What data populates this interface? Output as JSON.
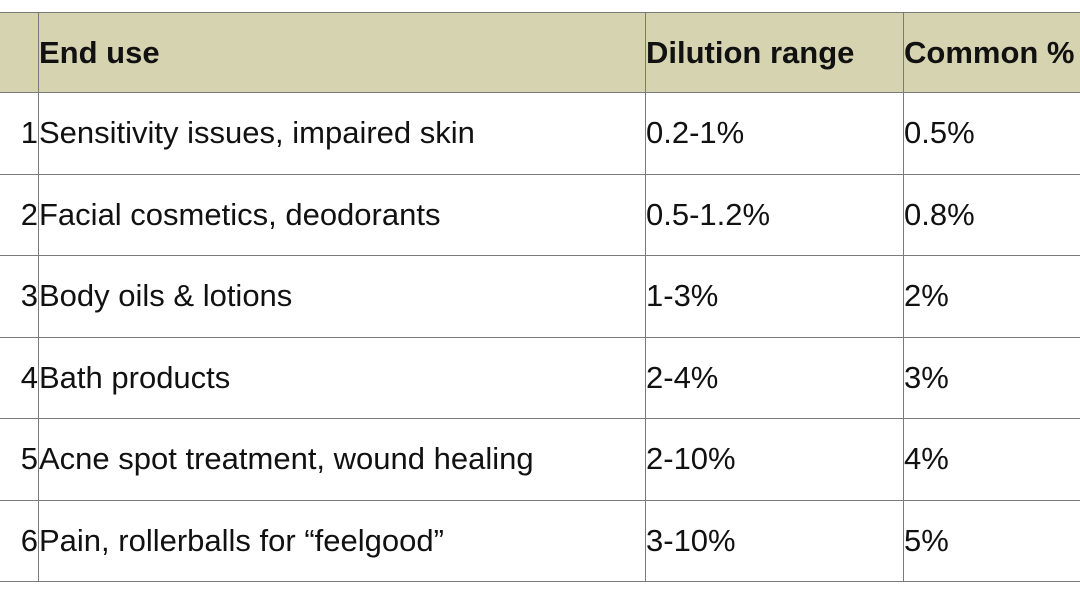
{
  "table": {
    "headers": {
      "num": "#",
      "end_use": "End use",
      "dilution_range": "Dilution range",
      "common": "Common %"
    },
    "rows": [
      {
        "num": "1",
        "end_use": "Sensitivity issues, impaired skin",
        "dilution_range": "0.2-1%",
        "common": "0.5%"
      },
      {
        "num": "2",
        "end_use": "Facial cosmetics, deodorants",
        "dilution_range": "0.5-1.2%",
        "common": "0.8%"
      },
      {
        "num": "3",
        "end_use": "Body oils & lotions",
        "dilution_range": "1-3%",
        "common": "2%"
      },
      {
        "num": "4",
        "end_use": "Bath products",
        "dilution_range": "2-4%",
        "common": "3%"
      },
      {
        "num": "5",
        "end_use": "Acne spot treatment, wound healing",
        "dilution_range": "2-10%",
        "common": "4%"
      },
      {
        "num": "6",
        "end_use": "Pain, rollerballs for “feelgood”",
        "dilution_range": "3-10%",
        "common": "5%"
      }
    ],
    "header_bg": "#d6d3b0",
    "border_color": "#7a7a7a"
  }
}
